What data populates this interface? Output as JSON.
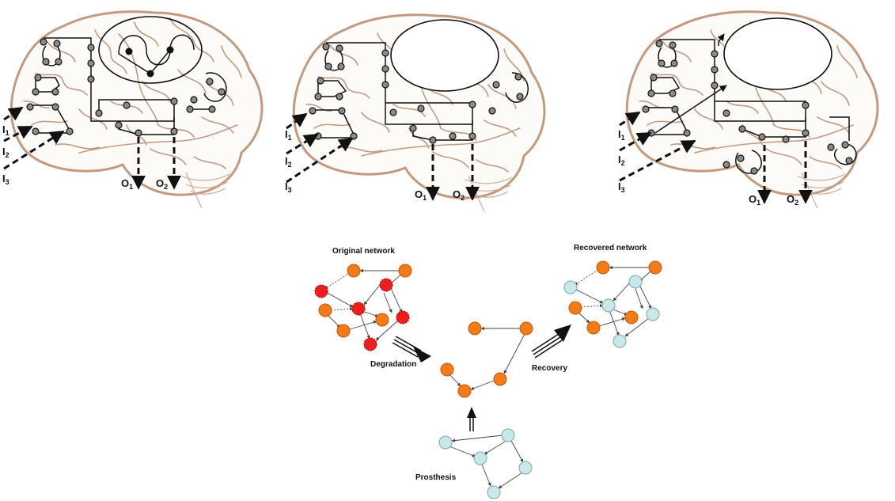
{
  "brains": [
    {
      "inputs": [
        {
          "letter": "I",
          "sub": "1"
        },
        {
          "letter": "I",
          "sub": "2"
        },
        {
          "letter": "I",
          "sub": "3"
        }
      ],
      "outputs": [
        {
          "letter": "O",
          "sub": "1"
        },
        {
          "letter": "O",
          "sub": "2"
        }
      ]
    },
    {
      "inputs": [
        {
          "letter": "I",
          "sub": "1"
        },
        {
          "letter": "I",
          "sub": "2"
        },
        {
          "letter": "I",
          "sub": "3"
        }
      ],
      "outputs": [
        {
          "letter": "O",
          "sub": "1"
        },
        {
          "letter": "O",
          "sub": "2"
        }
      ]
    },
    {
      "inputs": [
        {
          "letter": "I",
          "sub": "1"
        },
        {
          "letter": "I",
          "sub": "2"
        },
        {
          "letter": "I",
          "sub": "3"
        }
      ],
      "outputs": [
        {
          "letter": "O",
          "sub": "1"
        },
        {
          "letter": "O",
          "sub": "2"
        }
      ]
    }
  ],
  "networks": {
    "original": {
      "label": "Original network"
    },
    "recovered": {
      "label": "Recovered network"
    },
    "prosthesis": {
      "label": "Prosthesis"
    }
  },
  "arrows": {
    "degradation": "Degradation",
    "recovery": "Recovery"
  },
  "colors": {
    "intact_node": "#f47b17",
    "damaged_node": "#ee1c1c",
    "prosthetic_node": "#c8e8ea",
    "brain_outline": "#c39a80"
  }
}
